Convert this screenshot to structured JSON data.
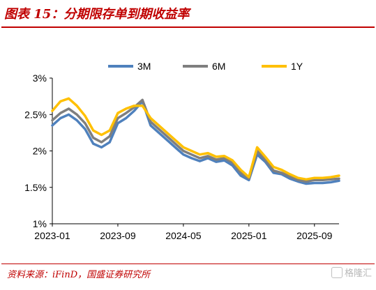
{
  "header": {
    "title": "图表 15：分期限存单到期收益率"
  },
  "footer": {
    "source": "资料来源：iFinD，国盛证券研究所",
    "watermark": "格隆汇"
  },
  "colors": {
    "accent": "#c00000",
    "3M": "#4f81bd",
    "6M": "#7f7f7f",
    "1Y": "#ffc000"
  },
  "chart_data": {
    "type": "line",
    "xlabel": "",
    "ylabel": "",
    "y_tick_labels": [
      "1%",
      "1.5%",
      "2%",
      "2.5%",
      "3%"
    ],
    "y_ticks": [
      1.0,
      1.5,
      2.0,
      2.5,
      3.0
    ],
    "ylim": [
      1.0,
      3.0
    ],
    "x_tick_labels": [
      "2023-01",
      "2023-09",
      "2024-05",
      "2025-01",
      "2025-09"
    ],
    "xlim": [
      "2023-01",
      "2025-12"
    ],
    "legend_position": "top",
    "grid": false,
    "x": [
      "2023-01",
      "2023-02",
      "2023-03",
      "2023-04",
      "2023-05",
      "2023-06",
      "2023-07",
      "2023-08",
      "2023-09",
      "2023-10",
      "2023-11",
      "2023-12",
      "2024-01",
      "2024-02",
      "2024-03",
      "2024-04",
      "2024-05",
      "2024-06",
      "2024-07",
      "2024-08",
      "2024-09",
      "2024-10",
      "2024-11",
      "2024-12",
      "2025-01",
      "2025-02",
      "2025-03",
      "2025-04",
      "2025-05",
      "2025-06",
      "2025-07",
      "2025-08",
      "2025-09",
      "2025-10",
      "2025-11",
      "2025-12"
    ],
    "series": [
      {
        "name": "3M",
        "color": "#4f81bd",
        "values": [
          2.35,
          2.45,
          2.5,
          2.42,
          2.3,
          2.1,
          2.05,
          2.12,
          2.38,
          2.45,
          2.55,
          2.68,
          2.35,
          2.25,
          2.15,
          2.05,
          1.95,
          1.9,
          1.86,
          1.9,
          1.85,
          1.87,
          1.8,
          1.66,
          1.6,
          1.95,
          1.85,
          1.7,
          1.68,
          1.62,
          1.58,
          1.55,
          1.56,
          1.56,
          1.57,
          1.59
        ]
      },
      {
        "name": "6M",
        "color": "#7f7f7f",
        "values": [
          2.42,
          2.52,
          2.58,
          2.5,
          2.38,
          2.18,
          2.12,
          2.2,
          2.45,
          2.52,
          2.6,
          2.7,
          2.4,
          2.3,
          2.2,
          2.1,
          2.0,
          1.95,
          1.9,
          1.93,
          1.88,
          1.9,
          1.84,
          1.7,
          1.62,
          2.0,
          1.88,
          1.73,
          1.7,
          1.65,
          1.6,
          1.58,
          1.6,
          1.6,
          1.61,
          1.62
        ]
      },
      {
        "name": "1Y",
        "color": "#ffc000",
        "values": [
          2.55,
          2.68,
          2.72,
          2.62,
          2.48,
          2.28,
          2.22,
          2.28,
          2.52,
          2.58,
          2.62,
          2.62,
          2.45,
          2.35,
          2.25,
          2.15,
          2.05,
          2.0,
          1.95,
          1.97,
          1.92,
          1.93,
          1.87,
          1.74,
          1.64,
          2.05,
          1.92,
          1.78,
          1.74,
          1.68,
          1.63,
          1.61,
          1.63,
          1.63,
          1.64,
          1.66
        ]
      }
    ]
  }
}
